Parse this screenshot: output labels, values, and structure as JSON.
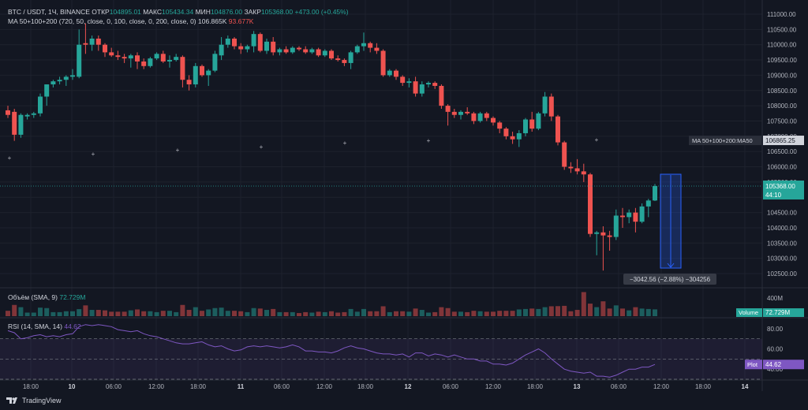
{
  "legend": {
    "symbol": "BTC / USDT, 1Ч, BINANCE",
    "open_label": "ОТКР",
    "open": "104895.01",
    "high_label": "МАКС",
    "high": "105434.34",
    "low_label": "МИН",
    "low": "104876.00",
    "close_label": "ЗАКР",
    "close": "105368.00",
    "change": "+473.00 (+0.45%)",
    "ma_label": "MA 50+100+200 (720, 50, close, 0, 100, close, 0, 200, close, 0)",
    "ma_value1": "106.865K",
    "ma_value2": "93.677K",
    "volume_label": "Объём (SMA, 9)",
    "volume_value": "72.729M",
    "rsi_label": "RSI (14, SMA, 14)",
    "rsi_value": "44.62"
  },
  "price_axis": {
    "ticks": [
      "111000.00",
      "110500.00",
      "110000.00",
      "109500.00",
      "109000.00",
      "108500.00",
      "108000.00",
      "107500.00",
      "107000.00",
      "106500.00",
      "106000.00",
      "105500.00",
      "105000.00",
      "104500.00",
      "104000.00",
      "103500.00",
      "103000.00",
      "102500.00"
    ],
    "ma_tag": "MA 50+100+200:MA50",
    "ma_tag_value": "106865.25",
    "price_tag": "105368.00",
    "countdown": "44:10"
  },
  "volume_axis": {
    "tick": "400M",
    "tag_label": "Volume",
    "tag_value": "72.729M"
  },
  "rsi_axis": {
    "ticks": [
      "80.00",
      "60.00",
      "40.00"
    ],
    "tag_label": "Plot",
    "tag_value": "44.62"
  },
  "time_axis": [
    "18:00",
    "10",
    "06:00",
    "12:00",
    "18:00",
    "11",
    "06:00",
    "12:00",
    "18:00",
    "12",
    "06:00",
    "12:00",
    "18:00",
    "13",
    "06:00",
    "12:00",
    "18:00",
    "14"
  ],
  "measure": {
    "text": "−3042.56 (−2.88%) −304256"
  },
  "brand": {
    "name": "TradingView"
  },
  "colors": {
    "up": "#26a69a",
    "down": "#ef5350",
    "rsi": "#7e57c2",
    "bg": "#131722"
  },
  "chart_data": {
    "type": "candlestick",
    "symbol": "BTC / USDT",
    "interval": "1h",
    "ylim": [
      102300,
      111200
    ],
    "candles": [
      {
        "o": 107850,
        "h": 108000,
        "l": 107600,
        "c": 107700
      },
      {
        "o": 107800,
        "h": 107900,
        "l": 106850,
        "c": 107050
      },
      {
        "o": 107050,
        "h": 107750,
        "l": 106950,
        "c": 107700
      },
      {
        "o": 107650,
        "h": 107750,
        "l": 107550,
        "c": 107700
      },
      {
        "o": 107700,
        "h": 107800,
        "l": 107600,
        "c": 107750
      },
      {
        "o": 107750,
        "h": 108400,
        "l": 107650,
        "c": 108300
      },
      {
        "o": 108300,
        "h": 108700,
        "l": 108000,
        "c": 108700
      },
      {
        "o": 108700,
        "h": 108850,
        "l": 108600,
        "c": 108800
      },
      {
        "o": 108800,
        "h": 108950,
        "l": 108700,
        "c": 108850
      },
      {
        "o": 108850,
        "h": 109000,
        "l": 108650,
        "c": 108950
      },
      {
        "o": 108950,
        "h": 109200,
        "l": 108850,
        "c": 109000
      },
      {
        "o": 108950,
        "h": 110500,
        "l": 108900,
        "c": 110000
      },
      {
        "o": 110050,
        "h": 110700,
        "l": 109700,
        "c": 110000
      },
      {
        "o": 110000,
        "h": 110300,
        "l": 109800,
        "c": 110200
      },
      {
        "o": 110200,
        "h": 110300,
        "l": 109800,
        "c": 110000
      },
      {
        "o": 110000,
        "h": 110050,
        "l": 109600,
        "c": 109750
      },
      {
        "o": 109750,
        "h": 109900,
        "l": 109600,
        "c": 109650
      },
      {
        "o": 109650,
        "h": 109800,
        "l": 109500,
        "c": 109600
      },
      {
        "o": 109600,
        "h": 109700,
        "l": 109400,
        "c": 109550
      },
      {
        "o": 109550,
        "h": 109700,
        "l": 109250,
        "c": 109650
      },
      {
        "o": 109650,
        "h": 109750,
        "l": 109200,
        "c": 109450
      },
      {
        "o": 109450,
        "h": 109550,
        "l": 109200,
        "c": 109300
      },
      {
        "o": 109300,
        "h": 109600,
        "l": 109250,
        "c": 109550
      },
      {
        "o": 109550,
        "h": 109750,
        "l": 109500,
        "c": 109700
      },
      {
        "o": 109700,
        "h": 109800,
        "l": 109400,
        "c": 109450
      },
      {
        "o": 109450,
        "h": 109650,
        "l": 109250,
        "c": 109500
      },
      {
        "o": 109500,
        "h": 109700,
        "l": 109450,
        "c": 109600
      },
      {
        "o": 109600,
        "h": 109650,
        "l": 108600,
        "c": 108850
      },
      {
        "o": 108850,
        "h": 109000,
        "l": 108500,
        "c": 108700
      },
      {
        "o": 108700,
        "h": 109400,
        "l": 108600,
        "c": 109300
      },
      {
        "o": 109300,
        "h": 109350,
        "l": 108950,
        "c": 109000
      },
      {
        "o": 109000,
        "h": 109200,
        "l": 108650,
        "c": 109150
      },
      {
        "o": 109150,
        "h": 109800,
        "l": 109100,
        "c": 109700
      },
      {
        "o": 109650,
        "h": 110250,
        "l": 109500,
        "c": 110000
      },
      {
        "o": 110000,
        "h": 110300,
        "l": 109900,
        "c": 110200
      },
      {
        "o": 110200,
        "h": 110250,
        "l": 109850,
        "c": 109950
      },
      {
        "o": 109950,
        "h": 110050,
        "l": 109700,
        "c": 109850
      },
      {
        "o": 109850,
        "h": 110000,
        "l": 109750,
        "c": 109950
      },
      {
        "o": 109950,
        "h": 110450,
        "l": 109750,
        "c": 110350
      },
      {
        "o": 110350,
        "h": 110400,
        "l": 109750,
        "c": 109800
      },
      {
        "o": 109800,
        "h": 110200,
        "l": 109700,
        "c": 110100
      },
      {
        "o": 110100,
        "h": 110250,
        "l": 109650,
        "c": 109750
      },
      {
        "o": 109750,
        "h": 109900,
        "l": 109650,
        "c": 109850
      },
      {
        "o": 109850,
        "h": 109950,
        "l": 109700,
        "c": 109750
      },
      {
        "o": 109750,
        "h": 109950,
        "l": 109700,
        "c": 109900
      },
      {
        "o": 109900,
        "h": 109950,
        "l": 109800,
        "c": 109850
      },
      {
        "o": 109850,
        "h": 109950,
        "l": 109700,
        "c": 109750
      },
      {
        "o": 109750,
        "h": 109900,
        "l": 109700,
        "c": 109850
      },
      {
        "o": 109850,
        "h": 109900,
        "l": 109600,
        "c": 109650
      },
      {
        "o": 109650,
        "h": 109850,
        "l": 109600,
        "c": 109800
      },
      {
        "o": 109800,
        "h": 109850,
        "l": 109500,
        "c": 109550
      },
      {
        "o": 109550,
        "h": 109650,
        "l": 109450,
        "c": 109500
      },
      {
        "o": 109500,
        "h": 109550,
        "l": 109300,
        "c": 109400
      },
      {
        "o": 109400,
        "h": 109800,
        "l": 109200,
        "c": 109750
      },
      {
        "o": 109750,
        "h": 110000,
        "l": 109700,
        "c": 109950
      },
      {
        "o": 109950,
        "h": 110400,
        "l": 109800,
        "c": 110050
      },
      {
        "o": 110050,
        "h": 110100,
        "l": 109750,
        "c": 109900
      },
      {
        "o": 109900,
        "h": 110050,
        "l": 109700,
        "c": 109800
      },
      {
        "o": 109800,
        "h": 109850,
        "l": 108950,
        "c": 109000
      },
      {
        "o": 109000,
        "h": 109200,
        "l": 108950,
        "c": 109150
      },
      {
        "o": 109150,
        "h": 109200,
        "l": 108850,
        "c": 108950
      },
      {
        "o": 108950,
        "h": 109000,
        "l": 108650,
        "c": 108750
      },
      {
        "o": 108750,
        "h": 108900,
        "l": 108600,
        "c": 108800
      },
      {
        "o": 108800,
        "h": 108950,
        "l": 108300,
        "c": 108400
      },
      {
        "o": 108400,
        "h": 108800,
        "l": 108300,
        "c": 108700
      },
      {
        "o": 108700,
        "h": 108800,
        "l": 108600,
        "c": 108750
      },
      {
        "o": 108750,
        "h": 108800,
        "l": 108550,
        "c": 108650
      },
      {
        "o": 108650,
        "h": 108700,
        "l": 107900,
        "c": 108000
      },
      {
        "o": 108000,
        "h": 108050,
        "l": 107350,
        "c": 107800
      },
      {
        "o": 107800,
        "h": 107900,
        "l": 107600,
        "c": 107700
      },
      {
        "o": 107700,
        "h": 107850,
        "l": 107550,
        "c": 107800
      },
      {
        "o": 107800,
        "h": 107950,
        "l": 107700,
        "c": 107750
      },
      {
        "o": 107750,
        "h": 107800,
        "l": 107400,
        "c": 107500
      },
      {
        "o": 107500,
        "h": 107800,
        "l": 107450,
        "c": 107750
      },
      {
        "o": 107750,
        "h": 107800,
        "l": 107500,
        "c": 107600
      },
      {
        "o": 107600,
        "h": 107650,
        "l": 107350,
        "c": 107450
      },
      {
        "o": 107450,
        "h": 107500,
        "l": 107100,
        "c": 107250
      },
      {
        "o": 107250,
        "h": 107300,
        "l": 106900,
        "c": 107000
      },
      {
        "o": 107000,
        "h": 107150,
        "l": 106750,
        "c": 106900
      },
      {
        "o": 106900,
        "h": 107200,
        "l": 106650,
        "c": 107100
      },
      {
        "o": 107100,
        "h": 107600,
        "l": 107000,
        "c": 107550
      },
      {
        "o": 107550,
        "h": 107800,
        "l": 107150,
        "c": 107250
      },
      {
        "o": 107250,
        "h": 107800,
        "l": 107200,
        "c": 107750
      },
      {
        "o": 107750,
        "h": 108450,
        "l": 107650,
        "c": 108300
      },
      {
        "o": 108300,
        "h": 108400,
        "l": 107500,
        "c": 107650
      },
      {
        "o": 107650,
        "h": 107700,
        "l": 106700,
        "c": 106800
      },
      {
        "o": 106800,
        "h": 106850,
        "l": 105900,
        "c": 106000
      },
      {
        "o": 106000,
        "h": 106150,
        "l": 105800,
        "c": 105950
      },
      {
        "o": 105950,
        "h": 106250,
        "l": 105750,
        "c": 105850
      },
      {
        "o": 105850,
        "h": 106100,
        "l": 105500,
        "c": 105750
      },
      {
        "o": 105750,
        "h": 105800,
        "l": 103700,
        "c": 103800
      },
      {
        "o": 103800,
        "h": 103900,
        "l": 103100,
        "c": 103850
      },
      {
        "o": 103850,
        "h": 104050,
        "l": 102600,
        "c": 103750
      },
      {
        "o": 103750,
        "h": 103900,
        "l": 103250,
        "c": 103700
      },
      {
        "o": 103700,
        "h": 104600,
        "l": 103600,
        "c": 104400
      },
      {
        "o": 104400,
        "h": 104650,
        "l": 104000,
        "c": 104350
      },
      {
        "o": 104350,
        "h": 104600,
        "l": 104150,
        "c": 104500
      },
      {
        "o": 104500,
        "h": 104650,
        "l": 103850,
        "c": 104200
      },
      {
        "o": 104200,
        "h": 104800,
        "l": 104150,
        "c": 104700
      },
      {
        "o": 104700,
        "h": 104950,
        "l": 104350,
        "c": 104895
      },
      {
        "o": 104895,
        "h": 105434,
        "l": 104876,
        "c": 105368
      }
    ],
    "ma50": 106865.25,
    "volume": {
      "ylim": [
        0,
        550
      ],
      "sma": 72.729,
      "unit": "M"
    },
    "rsi": {
      "ylim": [
        30,
        90
      ],
      "bands": [
        70,
        30
      ],
      "mid": 50,
      "last": 44.62,
      "values": [
        78,
        76,
        70,
        71,
        73,
        74,
        72,
        73,
        72,
        74,
        75,
        82,
        84,
        83,
        84,
        83,
        82,
        79,
        78,
        77,
        78,
        75,
        73,
        72,
        70,
        68,
        66,
        65,
        65,
        66,
        67,
        64,
        62,
        63,
        60,
        58,
        59,
        62,
        63,
        62,
        63,
        62,
        61,
        62,
        64,
        62,
        58,
        58,
        57,
        57,
        56,
        58,
        61,
        63,
        61,
        60,
        58,
        56,
        55,
        55,
        54,
        55,
        52,
        56,
        56,
        53,
        55,
        54,
        52,
        54,
        52,
        50,
        50,
        48,
        48,
        45,
        45,
        44,
        46,
        50,
        54,
        57,
        60,
        56,
        50,
        45,
        40,
        38,
        37,
        36,
        37,
        33,
        33,
        32,
        34,
        37,
        40,
        40,
        42,
        42,
        44.62
      ]
    }
  }
}
